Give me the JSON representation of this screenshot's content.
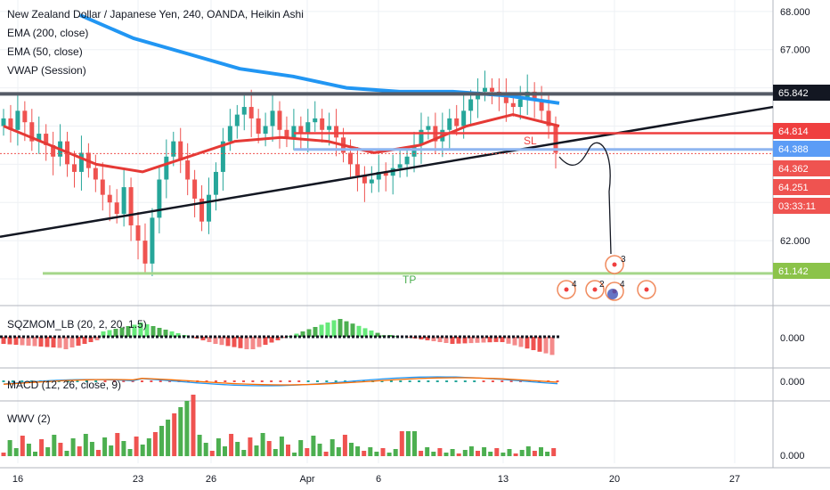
{
  "chart_data": {
    "type": "candlestick",
    "title": "New Zealand Dollar / Japanese Yen, 240, OANDA, Heikin Ashi",
    "indicators": [
      "EMA (200, close)",
      "EMA (50, close)",
      "VWAP (Session)"
    ],
    "y_range": [
      60.3,
      68.3
    ],
    "y_ticks": [
      "68.000",
      "67.000",
      "62.000"
    ],
    "x_ticks": [
      "16",
      "23",
      "26",
      "Apr",
      "6",
      "13",
      "20",
      "27"
    ],
    "price_tags": [
      {
        "value": "65.842",
        "color": "#131722"
      },
      {
        "value": "64.814",
        "color": "#ef3f3f"
      },
      {
        "value": "64.388",
        "color": "#5b9cf6"
      },
      {
        "value": "64.362",
        "color": "#ef5350"
      },
      {
        "value": "64.251",
        "color": "#ef5350"
      },
      {
        "value": "03:33:11",
        "color": "#ef5350"
      },
      {
        "value": "61.142",
        "color": "#8bc34a"
      }
    ],
    "levels": {
      "resistance": 65.842,
      "stop_loss": 64.814,
      "entry": 64.388,
      "take_profit": 61.142
    },
    "annotations": {
      "sl": "SL",
      "tp": "TP"
    },
    "projection_labels": [
      "3",
      "4",
      "2",
      "4"
    ],
    "candles_close": [
      65.2,
      64.9,
      65.4,
      65.1,
      64.6,
      64.8,
      64.5,
      64.2,
      64.6,
      64.0,
      63.8,
      64.3,
      63.9,
      63.6,
      63.2,
      63.0,
      62.7,
      63.4,
      62.4,
      62.0,
      61.4,
      62.6,
      63.6,
      64.2,
      64.6,
      64.1,
      63.6,
      63.1,
      62.5,
      63.2,
      63.8,
      64.6,
      65.0,
      65.3,
      65.5,
      65.2,
      64.8,
      65.0,
      65.4,
      64.9,
      64.7,
      65.0,
      64.8,
      65.1,
      65.2,
      64.9,
      65.0,
      64.7,
      64.3,
      64.0,
      63.7,
      63.5,
      63.6,
      63.8,
      63.7,
      63.9,
      64.0,
      64.2,
      64.5,
      64.9,
      65.0,
      64.6,
      64.9,
      65.2,
      65.0,
      65.4,
      65.7,
      65.9,
      66.0,
      65.9,
      65.8,
      65.6,
      65.5,
      65.7,
      65.9,
      65.7,
      65.4,
      65.0,
      64.3
    ],
    "ema200": [
      67.9,
      67.3,
      66.9,
      66.5,
      66.3,
      66.0,
      65.9,
      65.9,
      65.8,
      65.6
    ],
    "ema50": [
      65.0,
      64.5,
      64.0,
      63.8,
      64.2,
      64.6,
      64.7,
      64.6,
      64.3,
      64.5,
      65.0,
      65.3,
      65.0
    ],
    "panels": [
      {
        "name": "SQZMOM_LB (20, 2, 20, 1.5)",
        "value": "0.000"
      },
      {
        "name": "MACD (12, 26, close, 9)",
        "value": "0.000"
      },
      {
        "name": "WWV (2)",
        "value": "0.000"
      }
    ],
    "grid": true
  }
}
